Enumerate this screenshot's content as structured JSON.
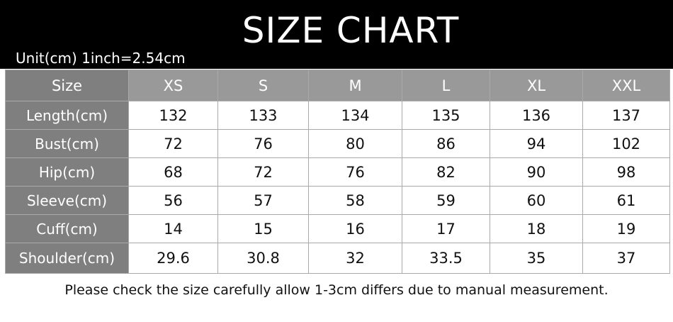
{
  "header": {
    "title": "SIZE CHART",
    "unit_note": "Unit(cm)  1inch=2.54cm"
  },
  "table": {
    "corner": "Size",
    "sizes": [
      "XS",
      "S",
      "M",
      "L",
      "XL",
      "XXL"
    ],
    "rows": [
      {
        "label": "Length(cm)",
        "values": [
          "132",
          "133",
          "134",
          "135",
          "136",
          "137"
        ]
      },
      {
        "label": "Bust(cm)",
        "values": [
          "72",
          "76",
          "80",
          "86",
          "94",
          "102"
        ]
      },
      {
        "label": "Hip(cm)",
        "values": [
          "68",
          "72",
          "76",
          "82",
          "90",
          "98"
        ]
      },
      {
        "label": "Sleeve(cm)",
        "values": [
          "56",
          "57",
          "58",
          "59",
          "60",
          "61"
        ]
      },
      {
        "label": "Cuff(cm)",
        "values": [
          "14",
          "15",
          "16",
          "17",
          "18",
          "19"
        ]
      },
      {
        "label": "Shoulder(cm)",
        "values": [
          "29.6",
          "30.8",
          "32",
          "33.5",
          "35",
          "37"
        ]
      }
    ]
  },
  "footer": {
    "note": "Please check the size carefully allow 1-3cm differs due to manual measurement."
  },
  "colors": {
    "banner": "#000000",
    "header_row": "#999999",
    "label_column": "#7f7f7f"
  }
}
